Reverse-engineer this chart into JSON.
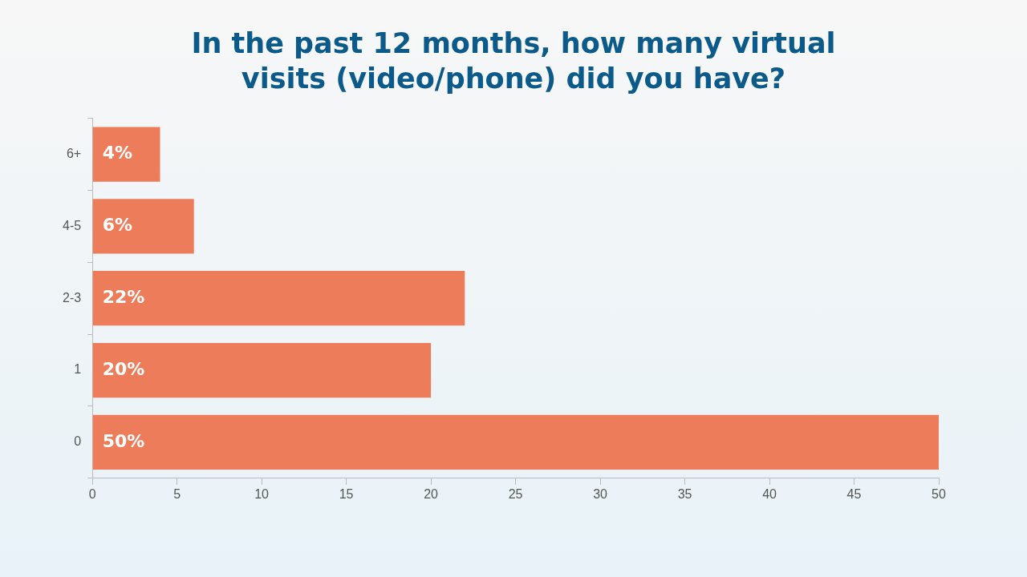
{
  "chart_data": {
    "type": "bar",
    "orientation": "horizontal",
    "title": "In the past 12 months, how many virtual visits (video/phone) did you have?",
    "categories": [
      "6+",
      "4-5",
      "2-3",
      "1",
      "0"
    ],
    "values": [
      4,
      6,
      22,
      20,
      50
    ],
    "value_labels": [
      "4%",
      "6%",
      "22%",
      "20%",
      "50%"
    ],
    "color": "#ec7c5a",
    "xlim": [
      0,
      50
    ],
    "xticks": [
      0,
      5,
      10,
      15,
      20,
      25,
      30,
      35,
      40,
      45,
      50
    ],
    "grid": false,
    "legend": false
  }
}
